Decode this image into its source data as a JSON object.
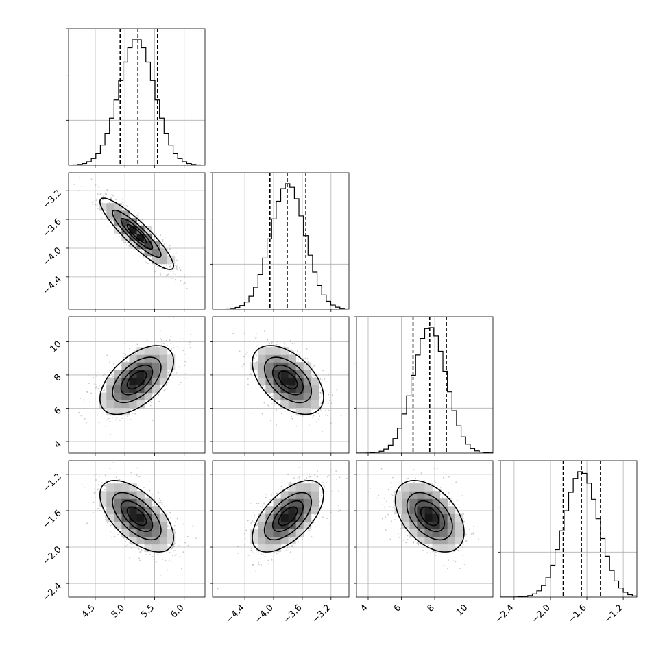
{
  "chart_data": {
    "type": "corner",
    "title": "",
    "n_params": 4,
    "params": [
      {
        "range": [
          4.05,
          6.35
        ],
        "ticks": [
          4.5,
          5.0,
          5.5,
          6.0
        ],
        "tick_labels": [
          "4.5",
          "5.0",
          "5.5",
          "6.0"
        ],
        "mean": 5.2,
        "std": 0.3,
        "quantiles": [
          4.92,
          5.22,
          5.55
        ]
      },
      {
        "range": [
          -4.85,
          -2.95
        ],
        "ticks": [
          -4.4,
          -4.0,
          -3.6,
          -3.2
        ],
        "tick_labels": [
          "−4.4",
          "−4.0",
          "−3.6",
          "−3.2"
        ],
        "mean": -3.8,
        "std": 0.24,
        "quantiles": [
          -4.05,
          -3.81,
          -3.55
        ]
      },
      {
        "range": [
          3.3,
          11.5
        ],
        "ticks": [
          4,
          6,
          8,
          10
        ],
        "tick_labels": [
          "4",
          "6",
          "8",
          "10"
        ],
        "mean": 7.7,
        "std": 1.0,
        "quantiles": [
          6.7,
          7.7,
          8.7
        ]
      },
      {
        "range": [
          -2.55,
          -1.05
        ],
        "ticks": [
          -2.4,
          -2.0,
          -1.6,
          -1.2
        ],
        "tick_labels": [
          "−2.4",
          "−2.0",
          "−1.6",
          "−1.2"
        ],
        "mean": -1.66,
        "std": 0.19,
        "quantiles": [
          -1.86,
          -1.66,
          -1.45
        ]
      }
    ],
    "correlations": [
      [
        1.0,
        -0.9,
        0.55,
        -0.6
      ],
      [
        -0.9,
        1.0,
        -0.5,
        0.6
      ],
      [
        0.55,
        -0.5,
        1.0,
        -0.45
      ],
      [
        -0.6,
        0.6,
        -0.45,
        1.0
      ]
    ],
    "histogram_bins": 30,
    "density_levels_sigma": [
      0.5,
      1.0,
      1.5,
      2.0
    ],
    "colors": {
      "line": "#000000",
      "grid": "#b0b0b0",
      "points": "#9a9a9a"
    },
    "grid": true
  }
}
